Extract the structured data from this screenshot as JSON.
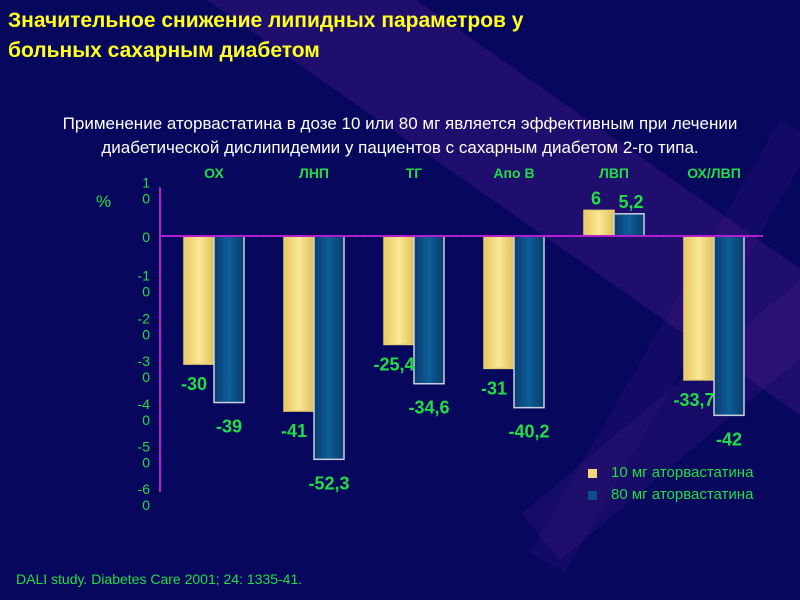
{
  "title": [
    "Значительное снижение липидных параметров у",
    "больных сахарным диабетом"
  ],
  "subtitle": [
    "Применение аторвастатина в дозе 10 или 80 мг является эффективным при лечении",
    "диабетической дислипидемии у пациентов с сахарным диабетом  2-го типа."
  ],
  "citation": "DALI study. Diabetes Care 2001; 24: 1335-41.",
  "colors": {
    "series1": "#f0d878",
    "series2": "#0a4f86",
    "text": "#22dd44",
    "axis": "#b020d0"
  },
  "chart_data": {
    "type": "bar",
    "ylabel": "%",
    "ylim": [
      -60,
      10
    ],
    "yticks": [
      10,
      0,
      -10,
      -20,
      -30,
      -40,
      -50,
      -60
    ],
    "ytick_labels": [
      [
        "1",
        "0"
      ],
      [
        "0"
      ],
      [
        "-1",
        "0"
      ],
      [
        "-2",
        "0"
      ],
      [
        "-3",
        "0"
      ],
      [
        "-4",
        "0"
      ],
      [
        "-5",
        "0"
      ],
      [
        "-6",
        "0"
      ]
    ],
    "categories": [
      "ОХ",
      "ЛНП",
      "ТГ",
      "Апо В",
      "ЛВП",
      "ОХ/ЛВП"
    ],
    "series": [
      {
        "name": "10 мг аторвастатина",
        "values": [
          -30,
          -41,
          -25.4,
          -31,
          6,
          -33.7
        ],
        "labels": [
          "-30",
          "-41",
          "-25,4",
          "-31",
          "6",
          "-33,7"
        ]
      },
      {
        "name": "80 мг аторвастатина",
        "values": [
          -39,
          -52.3,
          -34.6,
          -40.2,
          5.2,
          -42
        ],
        "labels": [
          "-39",
          "-52,3",
          "-34,6",
          "-40,2",
          "5,2",
          "-42"
        ]
      }
    ],
    "legend": "bottom-right",
    "grid": false
  }
}
